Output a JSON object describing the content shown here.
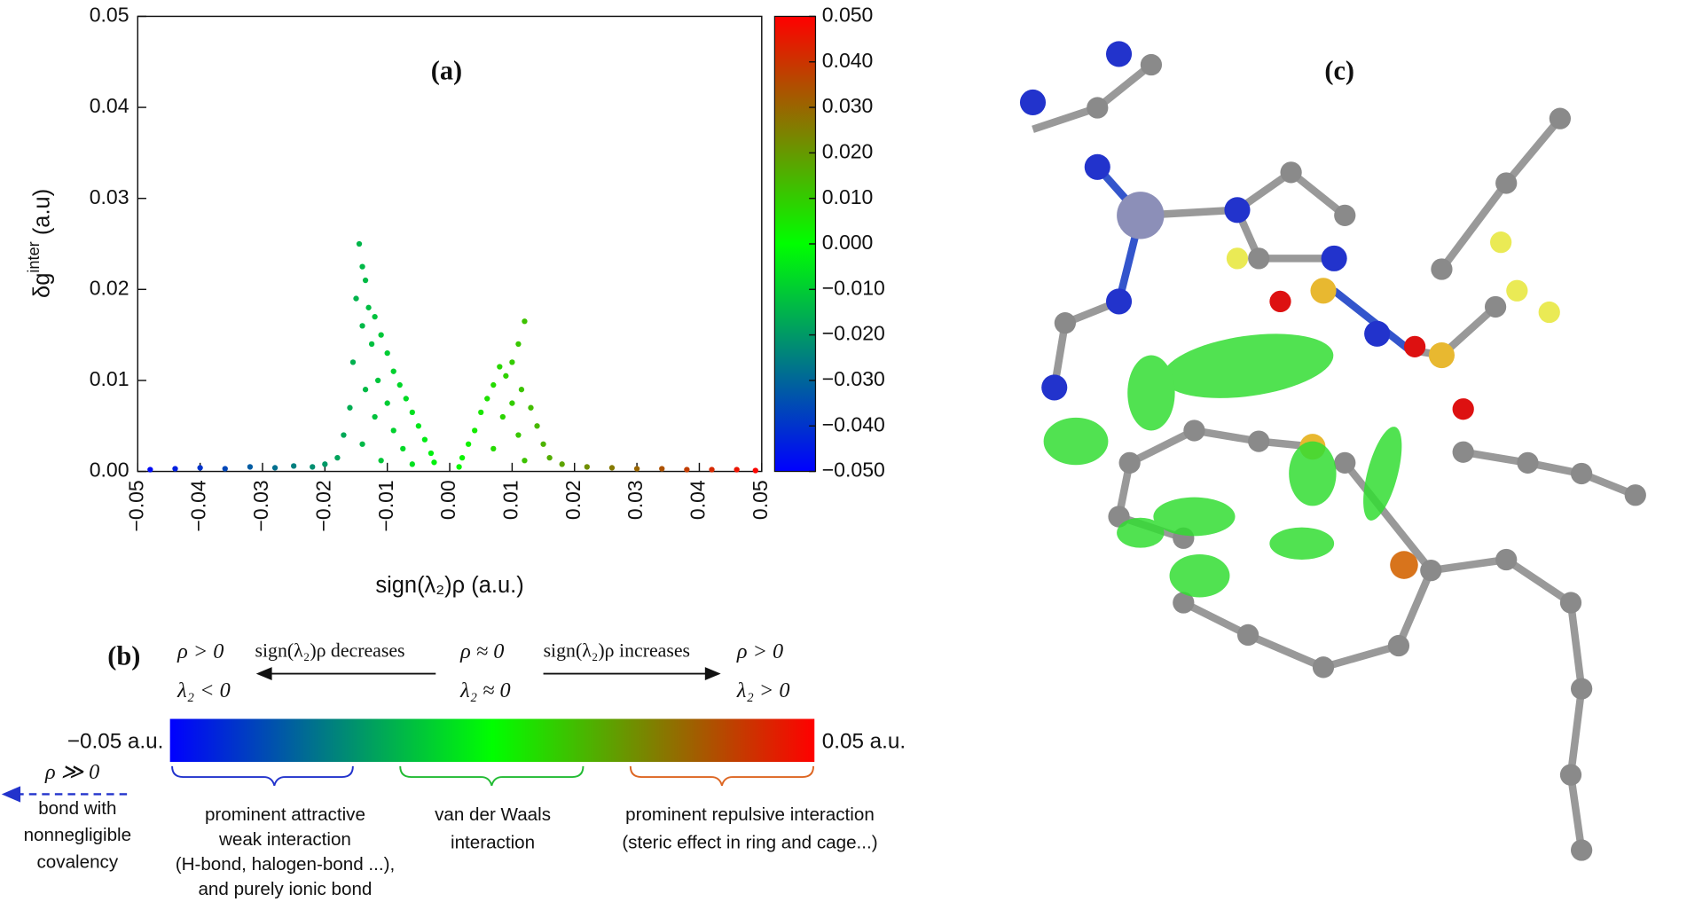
{
  "chart_data": [
    {
      "type": "scatter",
      "title": "(a)",
      "xlabel": "sign(λ₂)ρ (a.u.)",
      "ylabel": {
        "base": "δg",
        "sup": "inter",
        "unit": "(a.u)"
      },
      "xlim": [
        -0.05,
        0.05
      ],
      "ylim": [
        0,
        0.05
      ],
      "xticks": [
        {
          "value": -0.05,
          "label": "−0.05"
        },
        {
          "value": -0.04,
          "label": "−0.04"
        },
        {
          "value": -0.03,
          "label": "−0.03"
        },
        {
          "value": -0.02,
          "label": "−0.02"
        },
        {
          "value": -0.01,
          "label": "−0.01"
        },
        {
          "value": 0,
          "label": "0.00"
        },
        0.01,
        0.02,
        0.03,
        0.04,
        0.05
      ],
      "yticks": [
        {
          "value": 0,
          "label": "0.00"
        },
        0.01,
        0.02,
        0.03,
        0.04,
        0.05
      ],
      "colorscale": [
        "#0000ff",
        "#00ff00",
        "#ff0000"
      ],
      "colorbar": {
        "lim": [
          -0.05,
          0.05
        ],
        "ticks": [
          {
            "value": 0.05,
            "label": "0.050"
          },
          {
            "value": 0.04,
            "label": "0.040"
          },
          {
            "value": 0.03,
            "label": "0.030"
          },
          {
            "value": 0.02,
            "label": "0.020"
          },
          {
            "value": 0.01,
            "label": "0.010"
          },
          {
            "value": 0,
            "label": "0.000"
          },
          {
            "value": -0.01,
            "label": "−0.010"
          },
          {
            "value": -0.02,
            "label": "−0.020"
          },
          {
            "value": -0.03,
            "label": "−0.030"
          },
          {
            "value": -0.04,
            "label": "−0.040"
          },
          {
            "value": -0.05,
            "label": "−0.050"
          }
        ]
      },
      "x": [
        -0.0145,
        -0.014,
        -0.0135,
        -0.015,
        -0.013,
        -0.012,
        -0.014,
        -0.011,
        -0.0125,
        -0.01,
        -0.0155,
        -0.009,
        -0.0115,
        -0.008,
        -0.0135,
        -0.007,
        -0.01,
        -0.016,
        -0.006,
        -0.012,
        -0.005,
        -0.009,
        -0.017,
        -0.004,
        -0.014,
        -0.003,
        -0.0075,
        -0.018,
        -0.0025,
        -0.011,
        -0.02,
        -0.006,
        0.012,
        0.011,
        0.01,
        0.008,
        0.009,
        0.007,
        0.0115,
        0.006,
        0.01,
        0.013,
        0.005,
        0.0085,
        0.014,
        0.004,
        0.011,
        0.003,
        0.015,
        0.007,
        0.002,
        0.016,
        0.012,
        0.018,
        0.0015,
        -0.048,
        -0.044,
        -0.04,
        -0.036,
        -0.032,
        -0.028,
        -0.025,
        -0.022,
        0.022,
        0.026,
        0.03,
        0.034,
        0.038,
        0.042,
        0.046,
        0.049
      ],
      "y": [
        0.025,
        0.0225,
        0.021,
        0.019,
        0.018,
        0.017,
        0.016,
        0.015,
        0.014,
        0.013,
        0.012,
        0.011,
        0.01,
        0.0095,
        0.009,
        0.008,
        0.0075,
        0.007,
        0.0065,
        0.006,
        0.005,
        0.0045,
        0.004,
        0.0035,
        0.003,
        0.002,
        0.0025,
        0.0015,
        0.001,
        0.0012,
        0.0008,
        0.0008,
        0.0165,
        0.014,
        0.012,
        0.0115,
        0.0105,
        0.0095,
        0.009,
        0.008,
        0.0075,
        0.007,
        0.0065,
        0.006,
        0.005,
        0.0045,
        0.004,
        0.003,
        0.003,
        0.0025,
        0.0015,
        0.0015,
        0.0012,
        0.0008,
        0.0005,
        0.0002,
        0.0003,
        0.0004,
        0.0003,
        0.0005,
        0.0004,
        0.0006,
        0.0005,
        0.0005,
        0.0004,
        0.0003,
        0.0003,
        0.0002,
        0.0002,
        0.0002,
        0.0001
      ]
    },
    {
      "type": "scale",
      "title": "(b)",
      "left_top": "ρ > 0",
      "left_bottom": "λ₂ < 0",
      "decreases": "sign(λ₂)ρ decreases",
      "mid_top": "ρ ≈ 0",
      "mid_bottom": "λ₂ ≈ 0",
      "increases": "sign(λ₂)ρ increases",
      "right_top": "ρ > 0",
      "right_bottom": "λ₂ > 0",
      "min_label": "−0.05 a.u.",
      "max_label": "0.05 a.u.",
      "far_left": "ρ ≫ 0",
      "bond": [
        "bond with",
        "nonnegligible",
        "covalency"
      ],
      "attractive": [
        "prominent attractive",
        "weak interaction",
        "(H-bond, halogen-bond ...),",
        "and purely ionic bond"
      ],
      "vdw": [
        "van der Waals",
        "interaction"
      ],
      "repulsive": [
        "prominent repulsive interaction",
        "(steric effect in ring and cage...)"
      ]
    },
    {
      "type": "image",
      "title": "(c)"
    }
  ]
}
